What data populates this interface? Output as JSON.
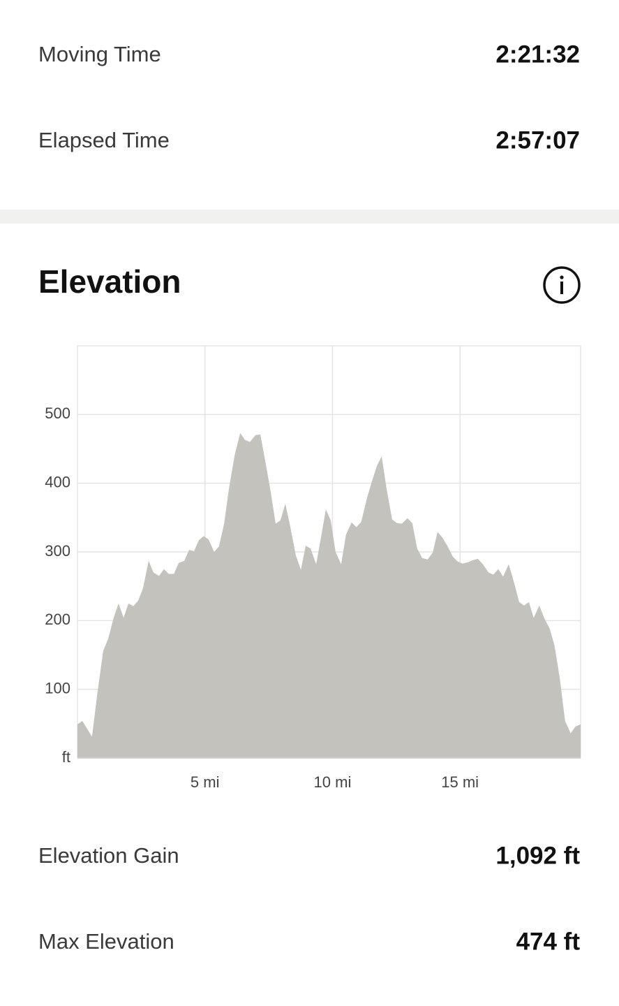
{
  "stats": [
    {
      "label": "Moving Time",
      "value": "2:21:32"
    },
    {
      "label": "Elapsed Time",
      "value": "2:57:07"
    }
  ],
  "section_title": "Elevation",
  "chart_data": {
    "type": "area",
    "color": "#c3c2bd",
    "x": [
      0,
      0.19,
      0.57,
      0.79,
      1.01,
      1.2,
      1.42,
      1.61,
      1.81,
      2.0,
      2.19,
      2.38,
      2.57,
      2.79,
      2.98,
      3.2,
      3.39,
      3.58,
      3.78,
      3.97,
      4.19,
      4.38,
      4.57,
      4.76,
      4.95,
      5.14,
      5.36,
      5.55,
      5.75,
      5.94,
      6.16,
      6.38,
      6.57,
      6.76,
      6.98,
      7.17,
      7.36,
      7.58,
      7.77,
      7.96,
      8.15,
      8.35,
      8.56,
      8.76,
      8.95,
      9.14,
      9.36,
      9.55,
      9.74,
      9.93,
      10.12,
      10.34,
      10.53,
      10.75,
      10.94,
      11.13,
      11.35,
      11.54,
      11.74,
      11.93,
      12.12,
      12.34,
      12.53,
      12.72,
      12.94,
      13.13,
      13.32,
      13.52,
      13.73,
      13.93,
      14.12,
      14.31,
      14.5,
      14.72,
      14.91,
      15.1,
      15.32,
      15.51,
      15.7,
      15.9,
      16.12,
      16.31,
      16.5,
      16.69,
      16.91,
      17.1,
      17.32,
      17.51,
      17.7,
      17.89,
      18.11,
      18.3,
      18.52,
      18.71,
      18.91,
      19.12,
      19.34,
      19.53,
      19.73
    ],
    "values": [
      49,
      54,
      31,
      97,
      156,
      173,
      204,
      225,
      204,
      225,
      221,
      229,
      247,
      287,
      270,
      265,
      275,
      268,
      268,
      284,
      287,
      303,
      301,
      317,
      323,
      318,
      300,
      308,
      341,
      392,
      440,
      473,
      463,
      460,
      470,
      471,
      433,
      387,
      341,
      346,
      370,
      336,
      295,
      274,
      309,
      305,
      282,
      321,
      362,
      346,
      300,
      282,
      325,
      343,
      336,
      344,
      378,
      402,
      425,
      439,
      392,
      347,
      342,
      341,
      349,
      342,
      305,
      291,
      289,
      299,
      329,
      321,
      309,
      293,
      286,
      283,
      285,
      288,
      290,
      282,
      270,
      267,
      275,
      264,
      282,
      258,
      227,
      222,
      227,
      204,
      222,
      204,
      188,
      163,
      117,
      54,
      36,
      46,
      49
    ],
    "xlim": [
      0,
      19.73
    ],
    "ylim": [
      0,
      600
    ],
    "xticks": [
      {
        "value": 5,
        "label": "5 mi"
      },
      {
        "value": 10,
        "label": "10 mi"
      },
      {
        "value": 15,
        "label": "15 mi"
      }
    ],
    "yticks": [
      {
        "value": 0,
        "label": "ft"
      },
      100,
      200,
      300,
      400,
      500
    ],
    "grid": true
  },
  "elevation_stats": [
    {
      "label": "Elevation Gain",
      "value": "1,092 ft"
    },
    {
      "label": "Max Elevation",
      "value": "474 ft"
    }
  ]
}
